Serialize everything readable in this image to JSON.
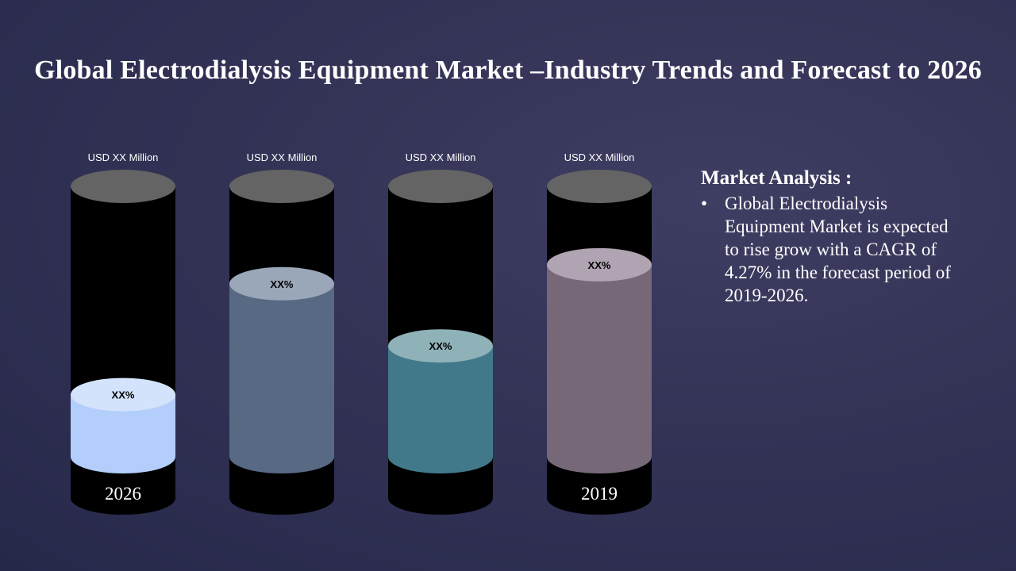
{
  "title": "Global Electrodialysis Equipment Market –Industry Trends and Forecast to 2026",
  "chart_data": {
    "type": "bar",
    "style": "cylinder",
    "categories": [
      "2026",
      "",
      "",
      "2019"
    ],
    "top_labels": [
      "USD XX Million",
      "USD XX Million",
      "USD XX Million",
      "USD XX Million"
    ],
    "value_labels": [
      "XX%",
      "XX%",
      "XX%",
      "XX%"
    ],
    "values": [
      0.23,
      0.64,
      0.41,
      0.71
    ],
    "colors": [
      "#b3cefa",
      "#586984",
      "#41798a",
      "#776878"
    ],
    "top_colors": [
      "#d4e3fc",
      "#9aa7b9",
      "#8fb2b8",
      "#b0a3b2"
    ],
    "ylim": [
      0,
      1
    ]
  },
  "analysis": {
    "heading": "Market Analysis :",
    "bullets": [
      "Global Electrodialysis Equipment Market is expected to rise grow with a CAGR of 4.27% in the forecast period of 2019-2026."
    ]
  }
}
